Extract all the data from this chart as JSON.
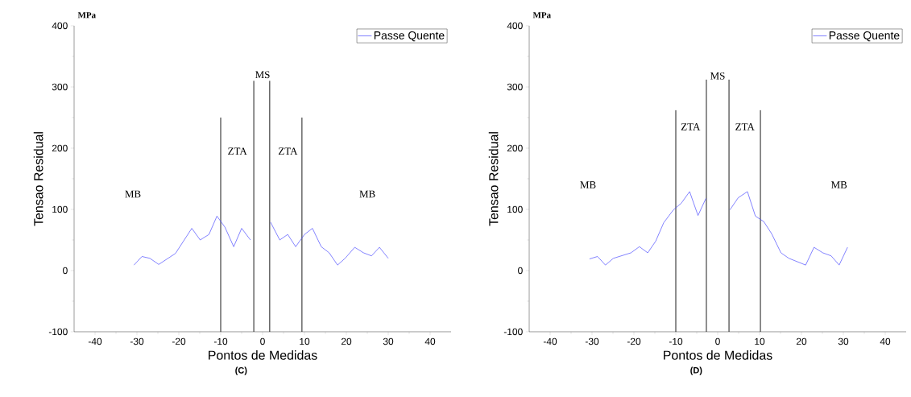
{
  "chart_data": [
    {
      "type": "line",
      "title": "(C)",
      "xlabel": "Pontos de Medidas",
      "ylabel": "Tensao Residual",
      "annotations": [
        "MPa",
        "MB",
        "ZTA",
        "MS",
        "ZTA",
        "MB"
      ],
      "series": [
        {
          "name": "Passe Quente",
          "color": "#4d4dff",
          "x": [
            -30.7,
            -28.8,
            -26.9,
            -24.8,
            -20.8,
            -16.9,
            -14.9,
            -12.8,
            -10.9,
            -9.0,
            -6.9,
            -5.0,
            -2.9,
            0,
            1.9,
            4.1,
            6.0,
            7.9,
            10.0,
            11.9,
            14.0,
            15.9,
            17.9,
            19.7,
            22.0,
            24.1,
            26.0,
            27.9,
            30.0
          ],
          "values": [
            9,
            23,
            20,
            10,
            28,
            69,
            50,
            59,
            89,
            71,
            39,
            69,
            50,
            null,
            79,
            50,
            59,
            39,
            59,
            69,
            39,
            29,
            9,
            20,
            38,
            29,
            24,
            38,
            20
          ]
        }
      ],
      "ref_lines": [
        {
          "axis": "x",
          "value": -10,
          "color": "#000000"
        },
        {
          "axis": "x",
          "value": -2.1,
          "color": "#000000"
        },
        {
          "axis": "x",
          "value": 1.7,
          "color": "#000000"
        },
        {
          "axis": "x",
          "value": 9.4,
          "color": "#000000"
        }
      ],
      "xlim": [
        -45,
        45
      ],
      "ylim": [
        -100,
        400
      ],
      "xticks": [
        -40,
        -30,
        -20,
        -10,
        0,
        10,
        20,
        30,
        40
      ],
      "yticks": [
        -100,
        0,
        100,
        200,
        300,
        400
      ],
      "legend": "top right",
      "marker": "none",
      "line_style": "solid"
    },
    {
      "type": "line",
      "title": "(D)",
      "xlabel": "Pontos de Medidas",
      "ylabel": "Tensao Residual",
      "annotations": [
        "MPa",
        "MB",
        "ZTA",
        "MS",
        "ZTA",
        "MB"
      ],
      "series": [
        {
          "name": "Passe Quente",
          "color": "#4d4dff",
          "x": [
            -30.6,
            -28.7,
            -26.8,
            -24.9,
            -20.7,
            -18.7,
            -16.7,
            -14.8,
            -12.9,
            -10.6,
            -8.7,
            -6.7,
            -4.7,
            -2.8,
            0,
            2.9,
            4.9,
            7.1,
            9.0,
            11.0,
            12.9,
            15.1,
            17.0,
            21.0,
            23.0,
            25.1,
            27.1,
            29.0,
            31.0
          ],
          "values": [
            19,
            23,
            9,
            20,
            29,
            39,
            29,
            48,
            78,
            99,
            110,
            129,
            90,
            118,
            null,
            99,
            119,
            129,
            89,
            80,
            60,
            29,
            20,
            9,
            38,
            29,
            24,
            9,
            38
          ]
        }
      ],
      "ref_lines": [
        {
          "axis": "x",
          "value": -10,
          "color": "#000000"
        },
        {
          "axis": "x",
          "value": -2.7,
          "color": "#000000"
        },
        {
          "axis": "x",
          "value": 2.7,
          "color": "#000000"
        },
        {
          "axis": "x",
          "value": 10.2,
          "color": "#000000"
        }
      ],
      "xlim": [
        -45,
        45
      ],
      "ylim": [
        -100,
        400
      ],
      "xticks": [
        -40,
        -30,
        -20,
        -10,
        0,
        10,
        20,
        30,
        40
      ],
      "yticks": [
        -100,
        0,
        100,
        200,
        300,
        400
      ],
      "legend": "top right",
      "marker": "none",
      "line_style": "solid"
    }
  ]
}
